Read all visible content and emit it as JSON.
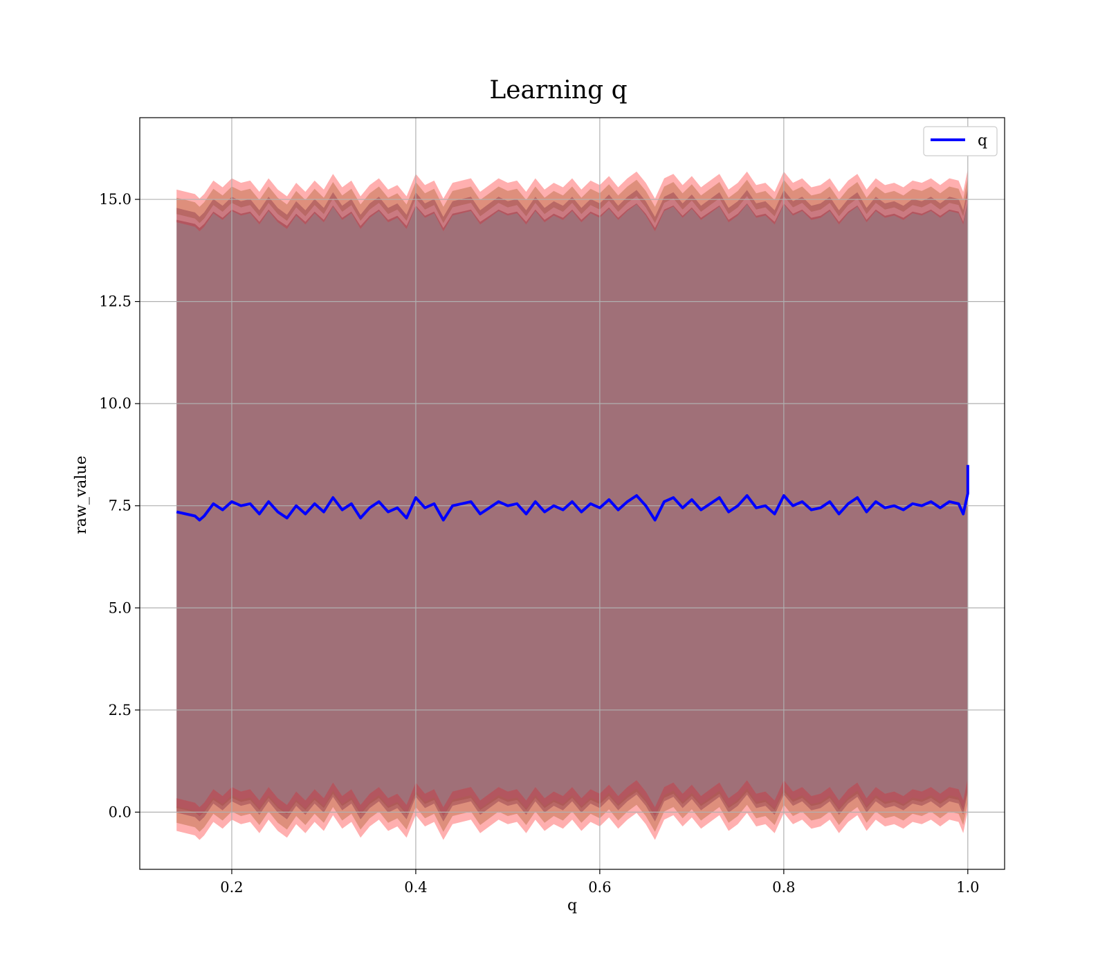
{
  "chart_data": {
    "type": "line",
    "title": "Learning q",
    "xlabel": "q",
    "ylabel": "raw_value",
    "xlim": [
      0.1,
      1.04
    ],
    "ylim": [
      -1.4,
      17.0
    ],
    "xticks": [
      0.2,
      0.4,
      0.6,
      0.8,
      1.0
    ],
    "xtick_labels": [
      "0.2",
      "0.4",
      "0.6",
      "0.8",
      "1.0"
    ],
    "yticks": [
      0.0,
      2.5,
      5.0,
      7.5,
      10.0,
      12.5,
      15.0
    ],
    "ytick_labels": [
      "0.0",
      "2.5",
      "5.0",
      "7.5",
      "10.0",
      "12.5",
      "15.0"
    ],
    "grid": true,
    "legend": {
      "position": "top-right",
      "entries": [
        "q"
      ]
    },
    "colors": {
      "line": "#0000ff",
      "outer_band": "#ff6e6e",
      "mid_band": "#c87a5a",
      "inner_band": "#8c3a4a",
      "main_fill": "#a07078"
    },
    "series": [
      {
        "name": "q",
        "x": [
          0.14,
          0.15,
          0.16,
          0.165,
          0.17,
          0.18,
          0.19,
          0.2,
          0.21,
          0.22,
          0.23,
          0.24,
          0.25,
          0.26,
          0.27,
          0.28,
          0.29,
          0.3,
          0.31,
          0.32,
          0.33,
          0.34,
          0.35,
          0.36,
          0.37,
          0.38,
          0.39,
          0.4,
          0.41,
          0.42,
          0.43,
          0.44,
          0.45,
          0.46,
          0.47,
          0.48,
          0.49,
          0.5,
          0.51,
          0.52,
          0.53,
          0.54,
          0.55,
          0.56,
          0.57,
          0.58,
          0.59,
          0.6,
          0.61,
          0.62,
          0.63,
          0.64,
          0.65,
          0.66,
          0.67,
          0.68,
          0.69,
          0.7,
          0.71,
          0.72,
          0.73,
          0.74,
          0.75,
          0.76,
          0.77,
          0.78,
          0.79,
          0.8,
          0.81,
          0.82,
          0.83,
          0.84,
          0.85,
          0.86,
          0.87,
          0.88,
          0.89,
          0.9,
          0.91,
          0.92,
          0.93,
          0.94,
          0.95,
          0.96,
          0.97,
          0.98,
          0.99,
          0.995,
          1.0,
          1.0
        ],
        "values": [
          7.35,
          7.3,
          7.25,
          7.15,
          7.25,
          7.55,
          7.4,
          7.6,
          7.5,
          7.55,
          7.3,
          7.6,
          7.35,
          7.2,
          7.5,
          7.3,
          7.55,
          7.35,
          7.7,
          7.4,
          7.55,
          7.2,
          7.45,
          7.6,
          7.35,
          7.45,
          7.2,
          7.7,
          7.45,
          7.55,
          7.15,
          7.5,
          7.55,
          7.6,
          7.3,
          7.45,
          7.6,
          7.5,
          7.55,
          7.3,
          7.6,
          7.35,
          7.5,
          7.4,
          7.6,
          7.35,
          7.55,
          7.45,
          7.65,
          7.4,
          7.6,
          7.75,
          7.5,
          7.15,
          7.6,
          7.7,
          7.45,
          7.65,
          7.4,
          7.55,
          7.7,
          7.35,
          7.5,
          7.75,
          7.45,
          7.5,
          7.3,
          7.75,
          7.5,
          7.6,
          7.4,
          7.45,
          7.6,
          7.3,
          7.55,
          7.7,
          7.35,
          7.6,
          7.45,
          7.5,
          7.4,
          7.55,
          7.5,
          7.6,
          7.45,
          7.6,
          7.55,
          7.3,
          7.8,
          8.5
        ]
      }
    ],
    "bands": {
      "upper_main": 14.6,
      "lower_main": 0.2
    }
  }
}
